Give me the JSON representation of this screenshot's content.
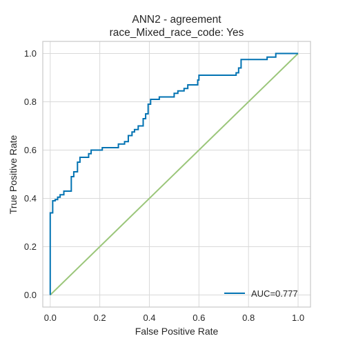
{
  "chart_data": {
    "type": "line",
    "title": "ANN2 - agreement",
    "subtitle": "race_Mixed_race_code: Yes",
    "xlabel": "False Positive Rate",
    "ylabel": "True Positive Rate",
    "xlim": [
      -0.03,
      1.05
    ],
    "ylim": [
      -0.05,
      1.05
    ],
    "xticks": [
      "0.0",
      "0.2",
      "0.4",
      "0.6",
      "0.8",
      "1.0"
    ],
    "yticks": [
      "0.0",
      "0.2",
      "0.4",
      "0.6",
      "0.8",
      "1.0"
    ],
    "grid": true,
    "legend_position": "bottom-right",
    "colors": {
      "roc": "#0072b2",
      "diagonal": "#9bc67a",
      "grid": "#d9d9d9",
      "frame": "#c8c8c8"
    },
    "series": [
      {
        "name": "AUC=0.777",
        "x": [
          0.0,
          0.0,
          0.01,
          0.01,
          0.02,
          0.02,
          0.03,
          0.03,
          0.04,
          0.04,
          0.055,
          0.055,
          0.065,
          0.065,
          0.085,
          0.085,
          0.095,
          0.095,
          0.11,
          0.11,
          0.12,
          0.12,
          0.155,
          0.155,
          0.165,
          0.165,
          0.21,
          0.21,
          0.275,
          0.275,
          0.3,
          0.3,
          0.315,
          0.315,
          0.33,
          0.33,
          0.34,
          0.34,
          0.355,
          0.355,
          0.375,
          0.375,
          0.385,
          0.385,
          0.395,
          0.395,
          0.405,
          0.405,
          0.44,
          0.44,
          0.5,
          0.5,
          0.515,
          0.515,
          0.54,
          0.54,
          0.555,
          0.555,
          0.595,
          0.595,
          0.6,
          0.6,
          0.75,
          0.75,
          0.76,
          0.76,
          0.77,
          0.77,
          0.875,
          0.875,
          0.91,
          0.91,
          1.0
        ],
        "y": [
          0.0,
          0.34,
          0.34,
          0.39,
          0.39,
          0.395,
          0.395,
          0.405,
          0.405,
          0.415,
          0.415,
          0.43,
          0.43,
          0.43,
          0.43,
          0.49,
          0.49,
          0.51,
          0.51,
          0.55,
          0.55,
          0.57,
          0.57,
          0.585,
          0.585,
          0.6,
          0.6,
          0.61,
          0.61,
          0.625,
          0.625,
          0.635,
          0.635,
          0.66,
          0.66,
          0.675,
          0.675,
          0.685,
          0.685,
          0.7,
          0.7,
          0.73,
          0.73,
          0.75,
          0.75,
          0.79,
          0.79,
          0.81,
          0.81,
          0.82,
          0.82,
          0.835,
          0.835,
          0.845,
          0.845,
          0.855,
          0.855,
          0.87,
          0.87,
          0.89,
          0.89,
          0.91,
          0.91,
          0.92,
          0.92,
          0.94,
          0.94,
          0.975,
          0.975,
          0.985,
          0.985,
          1.0,
          1.0
        ]
      },
      {
        "x": [
          0.0,
          1.0
        ],
        "y": [
          0.0,
          1.0
        ]
      }
    ]
  }
}
